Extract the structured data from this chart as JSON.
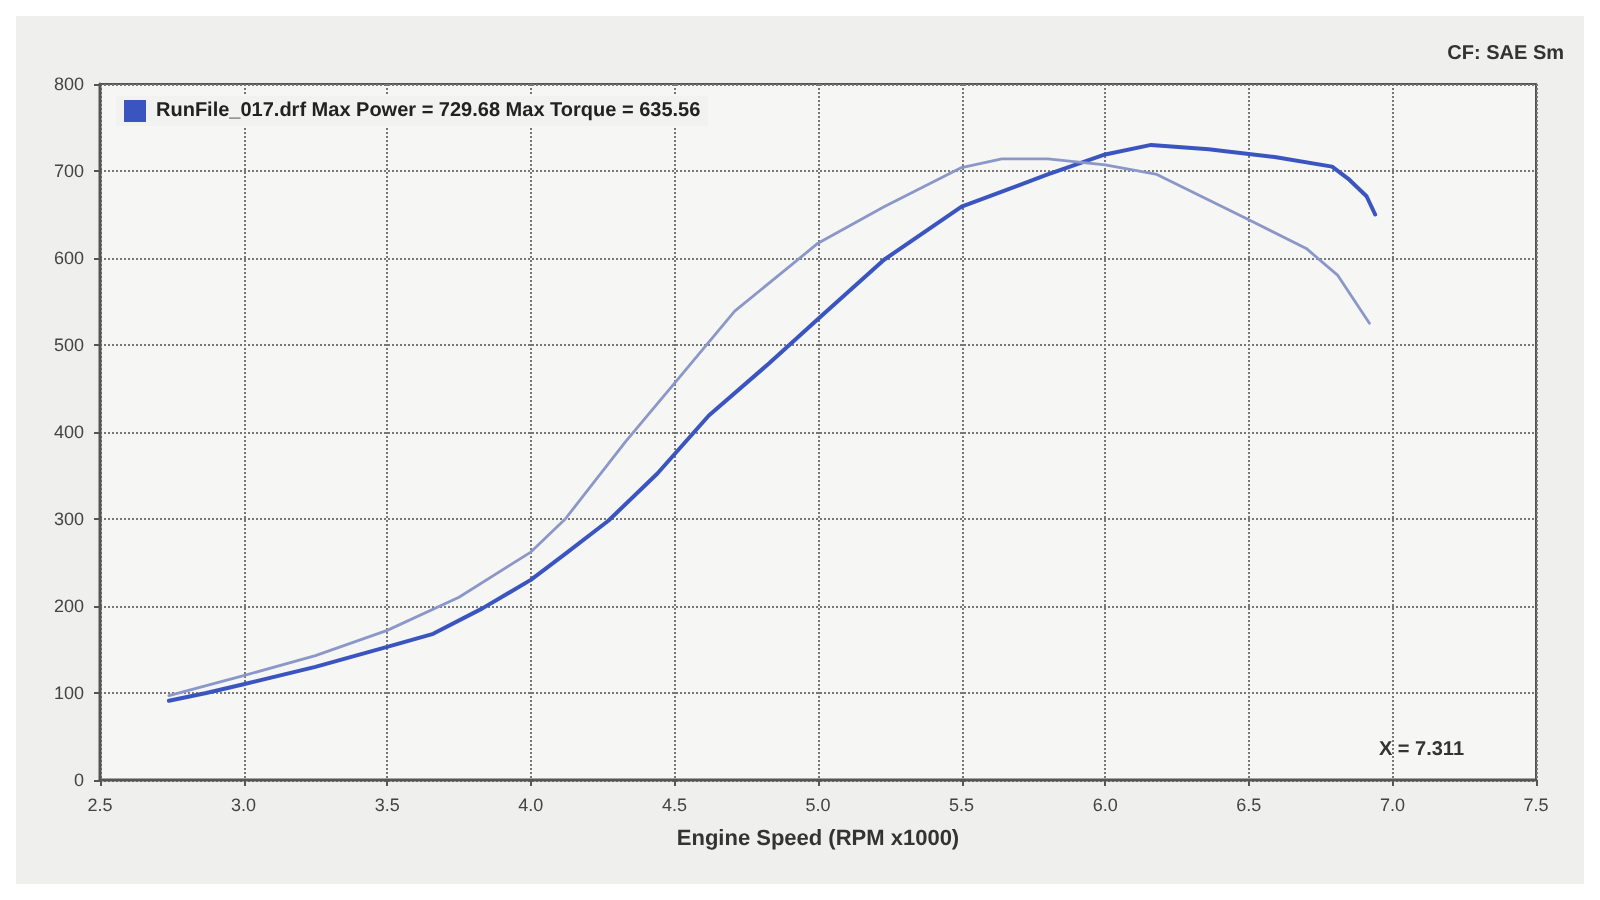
{
  "chart_data": {
    "type": "line",
    "xlabel": "Engine Speed (RPM x1000)",
    "annotations": [
      "X = 7.311",
      "CF: SAE Sm"
    ],
    "xlim": [
      2.5,
      7.5
    ],
    "xticks": [
      2.5,
      {
        "value": 3,
        "label": "3.0"
      },
      3.5,
      {
        "value": 4,
        "label": "4.0"
      },
      4.5,
      {
        "value": 5,
        "label": "5.0"
      },
      5.5,
      {
        "value": 6,
        "label": "6.0"
      },
      6.5,
      {
        "value": 7,
        "label": "7.0"
      },
      7.5
    ],
    "ylim": [
      0,
      800
    ],
    "yticks": [
      0,
      100,
      200,
      300,
      400,
      500,
      600,
      700,
      800
    ],
    "series": [
      {
        "name": "RunFile_017.drf Max Power = 729.68 Max Torque = 635.56",
        "color": "#3a55c0",
        "x": [
          2.74,
          2.87,
          3.0,
          3.25,
          3.5,
          3.66,
          3.83,
          4.0,
          4.12,
          4.27,
          4.44,
          4.62,
          4.83,
          5.0,
          5.23,
          5.5,
          5.8,
          6.0,
          6.16,
          6.36,
          6.59,
          6.79,
          6.85,
          6.91,
          6.94
        ],
        "values": [
          91,
          100,
          110,
          130,
          153,
          168,
          197,
          230,
          260,
          298,
          352,
          419,
          479,
          530,
          598,
          659,
          696,
          719,
          730,
          725,
          716,
          705,
          690,
          671,
          650
        ]
      },
      {
        "color": "#8a97c8",
        "x": [
          2.74,
          3.0,
          3.25,
          3.5,
          3.75,
          4.0,
          4.12,
          4.33,
          4.5,
          4.71,
          5.0,
          5.23,
          5.5,
          5.64,
          5.8,
          6.0,
          6.18,
          6.5,
          6.7,
          6.81,
          6.92
        ],
        "values": [
          97,
          120,
          143,
          172,
          210,
          262,
          300,
          389,
          456,
          539,
          617,
          659,
          704,
          714,
          714,
          707,
          696,
          644,
          611,
          580,
          525
        ]
      }
    ],
    "grid": true,
    "legend": "top left",
    "marker": "none",
    "line_style": "solid"
  }
}
